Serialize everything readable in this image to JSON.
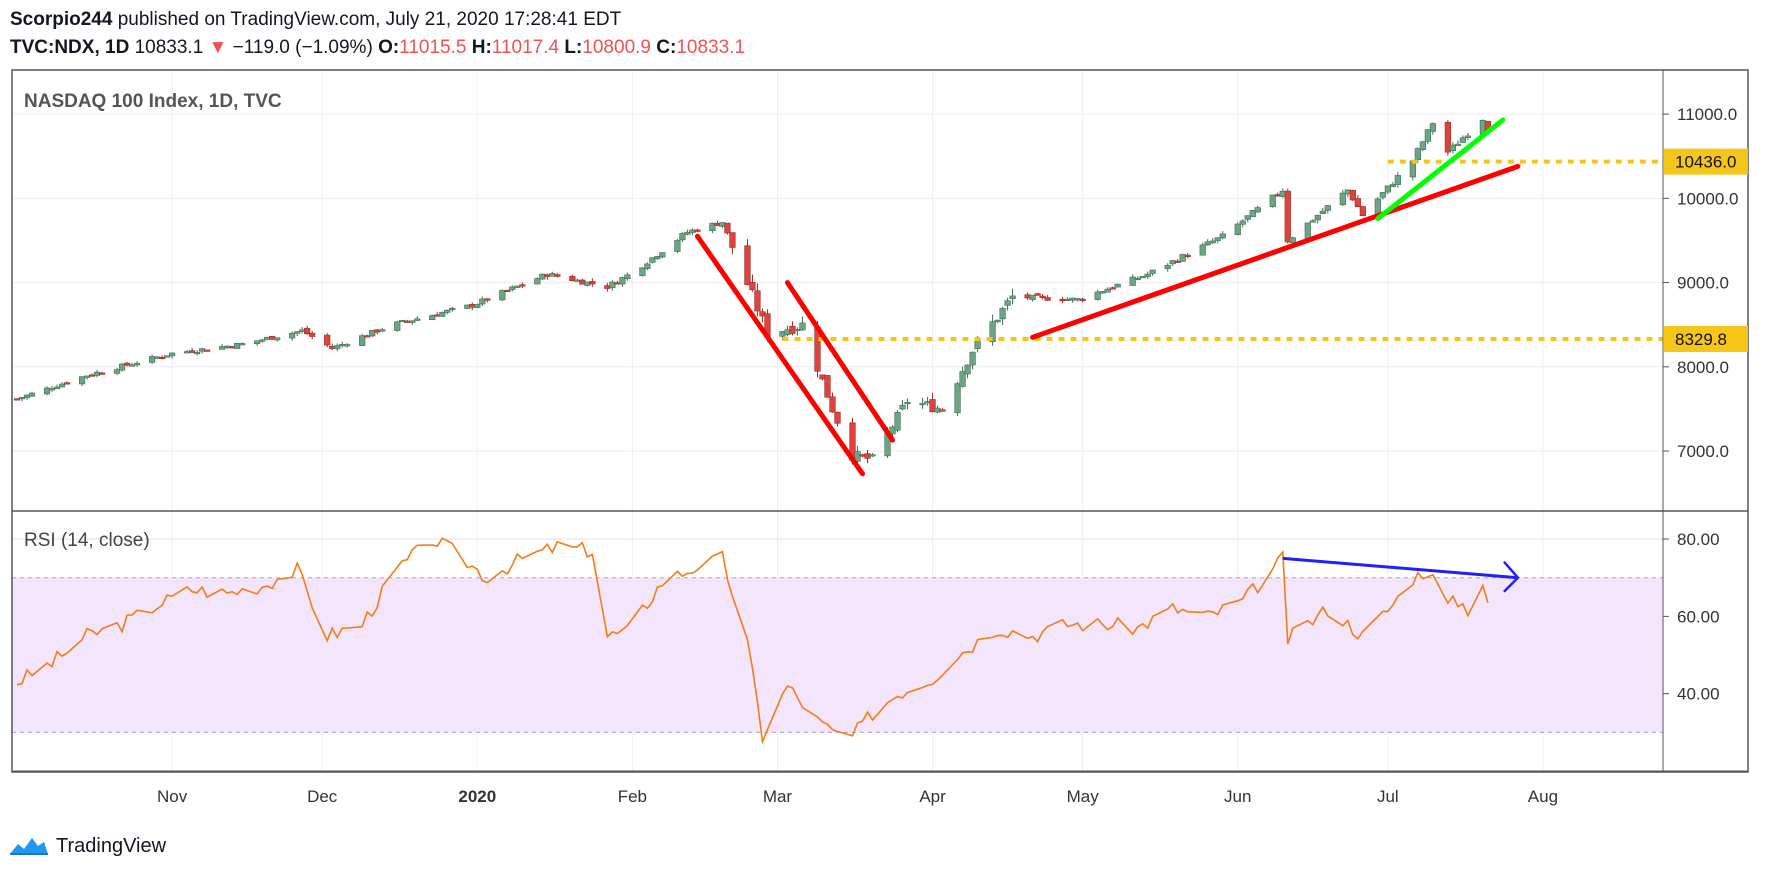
{
  "header": {
    "author": "Scorpio244",
    "published_text": "published on TradingView.com, July 21, 2020 17:28:41 EDT",
    "symbol_interval": "TVC:NDX, 1D",
    "last": "10833.1",
    "change": "−119.0 (−1.09%)",
    "o_label": "O:",
    "o": "11015.5",
    "h_label": "H:",
    "h": "11017.4",
    "l_label": "L:",
    "l": "10800.9",
    "c_label": "C:",
    "c": "10833.1"
  },
  "footer": {
    "brand": "TradingView"
  },
  "colors": {
    "up": "#6ba583",
    "down": "#e0423c",
    "rsi": "#f57c17",
    "rsi_band": "#f3e5fb",
    "trend_red": "#ff0000",
    "trend_green": "#00ff00",
    "level": "#f5c518",
    "divergence": "#1f1fff"
  },
  "chart_data": [
    {
      "type": "candlestick",
      "title": "NASDAQ 100 Index, 1D, TVC",
      "x_ticks": [
        "Nov",
        "Dec",
        "2020",
        "Feb",
        "Mar",
        "Apr",
        "May",
        "Jun",
        "Jul",
        "Aug"
      ],
      "y_ticks": [
        "7000.0",
        "8000.0",
        "9000.0",
        "10000.0",
        "11000.0"
      ],
      "ylim": [
        6300,
        11500
      ],
      "horizontal_levels": [
        {
          "label": "10436.0",
          "value": 10436.0,
          "from": "2020-07-01"
        },
        {
          "label": "8329.8",
          "value": 8329.8,
          "from": "2020-03-02"
        }
      ],
      "trend_lines": [
        {
          "color": "red",
          "points": [
            [
              "2020-02-14",
              9550
            ],
            [
              "2020-03-18",
              6730
            ]
          ]
        },
        {
          "color": "red",
          "points": [
            [
              "2020-03-03",
              9000
            ],
            [
              "2020-03-24",
              7130
            ]
          ]
        },
        {
          "color": "red",
          "points": [
            [
              "2020-04-21",
              8350
            ],
            [
              "2020-07-27",
              10380
            ]
          ]
        },
        {
          "color": "green",
          "points": [
            [
              "2020-06-29",
              9760
            ],
            [
              "2020-07-24",
              10930
            ]
          ]
        }
      ],
      "close_path": [
        [
          "2019-10-01",
          7620
        ],
        [
          "2019-10-15",
          7900
        ],
        [
          "2019-11-01",
          8160
        ],
        [
          "2019-11-15",
          8270
        ],
        [
          "2019-11-27",
          8430
        ],
        [
          "2019-12-03",
          8220
        ],
        [
          "2019-12-15",
          8500
        ],
        [
          "2019-12-31",
          8730
        ],
        [
          "2020-01-15",
          9100
        ],
        [
          "2020-01-27",
          8950
        ],
        [
          "2020-02-01",
          9120
        ],
        [
          "2020-02-12",
          9600
        ],
        [
          "2020-02-19",
          9720
        ],
        [
          "2020-02-28",
          8400
        ],
        [
          "2020-03-06",
          8500
        ],
        [
          "2020-03-12",
          7500
        ],
        [
          "2020-03-16",
          6950
        ],
        [
          "2020-03-20",
          6900
        ],
        [
          "2020-03-27",
          7600
        ],
        [
          "2020-04-03",
          7500
        ],
        [
          "2020-04-09",
          8200
        ],
        [
          "2020-04-17",
          8830
        ],
        [
          "2020-04-30",
          8800
        ],
        [
          "2020-05-14",
          9100
        ],
        [
          "2020-05-29",
          9550
        ],
        [
          "2020-06-10",
          10100
        ],
        [
          "2020-06-11",
          9500
        ],
        [
          "2020-06-23",
          10100
        ],
        [
          "2020-06-26",
          9800
        ],
        [
          "2020-07-06",
          10450
        ],
        [
          "2020-07-10",
          10900
        ],
        [
          "2020-07-13",
          10550
        ],
        [
          "2020-07-20",
          10950
        ],
        [
          "2020-07-21",
          10833.1
        ]
      ]
    },
    {
      "type": "line",
      "title": "RSI (14, close)",
      "y_ticks": [
        "40.00",
        "60.00",
        "80.00"
      ],
      "ylim": [
        20,
        87
      ],
      "band": [
        30,
        70
      ],
      "series": [
        {
          "name": "",
          "values_path": [
            [
              "2019-10-01",
              43
            ],
            [
              "2019-10-08",
              48
            ],
            [
              "2019-10-15",
              55
            ],
            [
              "2019-10-22",
              58
            ],
            [
              "2019-10-29",
              63
            ],
            [
              "2019-11-05",
              67
            ],
            [
              "2019-11-12",
              66
            ],
            [
              "2019-11-19",
              68
            ],
            [
              "2019-11-26",
              72
            ],
            [
              "2019-12-02",
              55
            ],
            [
              "2019-12-09",
              58
            ],
            [
              "2019-12-16",
              72
            ],
            [
              "2019-12-23",
              80
            ],
            [
              "2019-12-27",
              77
            ],
            [
              "2020-01-03",
              70
            ],
            [
              "2020-01-10",
              75
            ],
            [
              "2020-01-17",
              78
            ],
            [
              "2020-01-24",
              77
            ],
            [
              "2020-01-27",
              55
            ],
            [
              "2020-01-31",
              56
            ],
            [
              "2020-02-07",
              69
            ],
            [
              "2020-02-14",
              73
            ],
            [
              "2020-02-19",
              75
            ],
            [
              "2020-02-24",
              53
            ],
            [
              "2020-02-27",
              29
            ],
            [
              "2020-03-03",
              42
            ],
            [
              "2020-03-09",
              33
            ],
            [
              "2020-03-12",
              30
            ],
            [
              "2020-03-16",
              29
            ],
            [
              "2020-03-20",
              35
            ],
            [
              "2020-03-25",
              40
            ],
            [
              "2020-04-01",
              44
            ],
            [
              "2020-04-06",
              50
            ],
            [
              "2020-04-14",
              57
            ],
            [
              "2020-04-21",
              55
            ],
            [
              "2020-04-28",
              58
            ],
            [
              "2020-05-05",
              58
            ],
            [
              "2020-05-12",
              57
            ],
            [
              "2020-05-19",
              62
            ],
            [
              "2020-05-26",
              60
            ],
            [
              "2020-06-02",
              64
            ],
            [
              "2020-06-08",
              72
            ],
            [
              "2020-06-10",
              75
            ],
            [
              "2020-06-11",
              54
            ],
            [
              "2020-06-19",
              62
            ],
            [
              "2020-06-26",
              55
            ],
            [
              "2020-07-02",
              63
            ],
            [
              "2020-07-06",
              70
            ],
            [
              "2020-07-09",
              72
            ],
            [
              "2020-07-13",
              63
            ],
            [
              "2020-07-15",
              64
            ],
            [
              "2020-07-17",
              62
            ],
            [
              "2020-07-20",
              69
            ],
            [
              "2020-07-21",
              64
            ]
          ]
        }
      ],
      "divergence_line": {
        "points": [
          [
            "2020-06-10",
            75
          ],
          [
            "2020-07-27",
            70
          ]
        ],
        "arrow": true
      }
    }
  ]
}
